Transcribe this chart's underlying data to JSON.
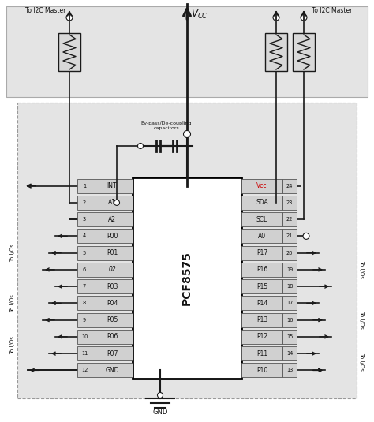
{
  "chip_name": "PCF8575",
  "left_pins": [
    {
      "num": 1,
      "name": "INT"
    },
    {
      "num": 2,
      "name": "A1"
    },
    {
      "num": 3,
      "name": "A2"
    },
    {
      "num": 4,
      "name": "P00"
    },
    {
      "num": 5,
      "name": "P01"
    },
    {
      "num": 6,
      "name": "02",
      "italic": true
    },
    {
      "num": 7,
      "name": "P03"
    },
    {
      "num": 8,
      "name": "P04"
    },
    {
      "num": 9,
      "name": "P05"
    },
    {
      "num": 10,
      "name": "P06"
    },
    {
      "num": 11,
      "name": "P07"
    },
    {
      "num": 12,
      "name": "GND"
    }
  ],
  "right_pins": [
    {
      "num": 24,
      "name": "Vcc"
    },
    {
      "num": 23,
      "name": "SDA"
    },
    {
      "num": 22,
      "name": "SCL"
    },
    {
      "num": 21,
      "name": "A0"
    },
    {
      "num": 20,
      "name": "P17"
    },
    {
      "num": 19,
      "name": "P16"
    },
    {
      "num": 18,
      "name": "P15"
    },
    {
      "num": 17,
      "name": "P14"
    },
    {
      "num": 16,
      "name": "P13"
    },
    {
      "num": 15,
      "name": "P12"
    },
    {
      "num": 14,
      "name": "P11"
    },
    {
      "num": 13,
      "name": "P10"
    }
  ],
  "line_color": "#1a1a1a",
  "text_color": "#111111",
  "bg_white": "#ffffff",
  "bg_gray": "#e0e0e0",
  "pin_box_fill": "#d0d0d0",
  "pin_box_edge": "#555555"
}
